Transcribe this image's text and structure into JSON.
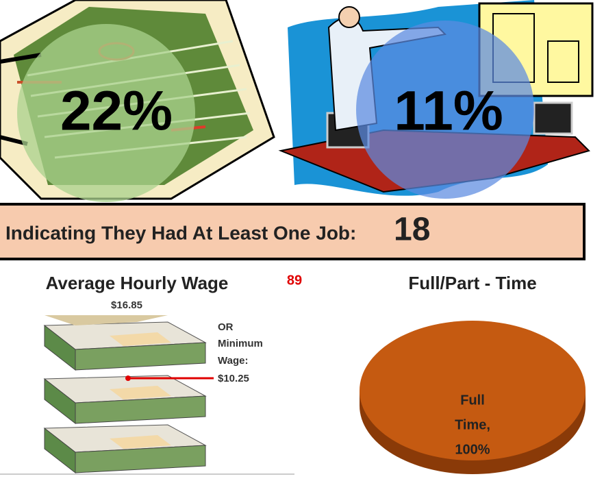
{
  "top": {
    "left_stat": "22%",
    "right_stat": "11%"
  },
  "banner": {
    "text": "Indicating They Had At Least One Job:",
    "value": "18"
  },
  "wage": {
    "title": "Average Hourly Wage",
    "note": "89",
    "average": "$16.85",
    "minimum_lines": [
      "OR",
      "Minimum",
      "Wage:",
      "$10.25"
    ]
  },
  "pie": {
    "title": "Full/Part - Time",
    "label_lines": [
      "Full",
      "Time,",
      "100%"
    ]
  }
}
